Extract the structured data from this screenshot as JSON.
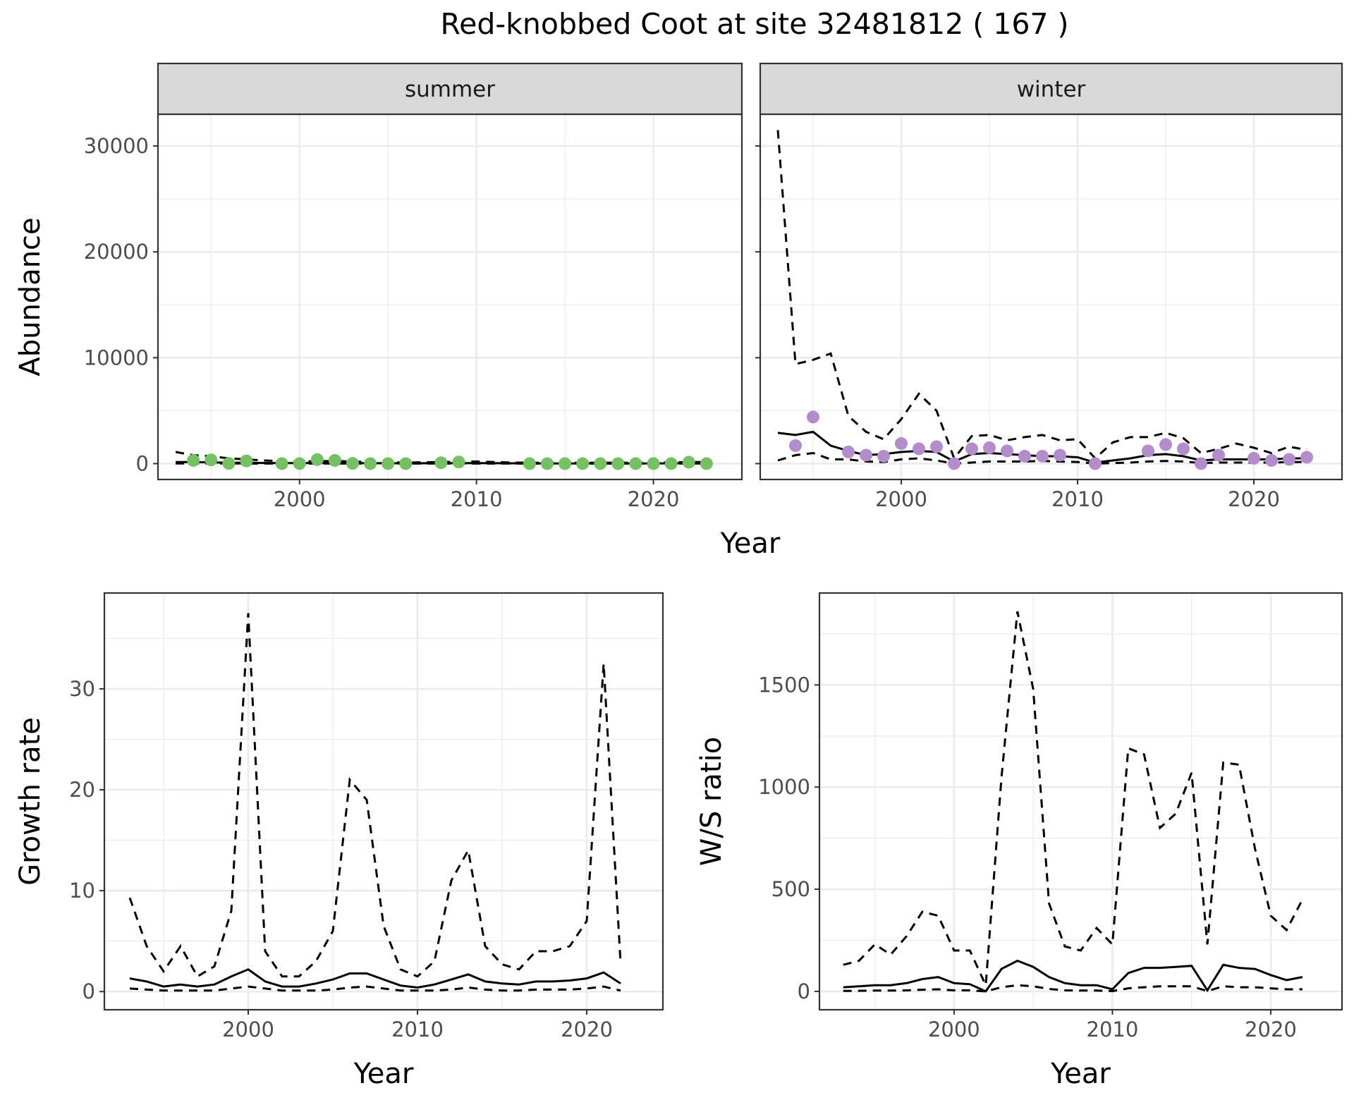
{
  "title": "Red-knobbed Coot at site 32481812 ( 167 )",
  "colors": {
    "summer_points": "#74c162",
    "winter_points": "#b38ccb",
    "strip_bg": "#d9d9d9",
    "grid": "#ebebeb",
    "lines": "#000000"
  },
  "chart_data": [
    {
      "type": "line",
      "panel": "abundance",
      "ylabel": "Abundance",
      "xlabel": "Year",
      "xlim": [
        1992,
        2025
      ],
      "ylim": [
        -1500,
        33000
      ],
      "xticks": [
        2000,
        2010,
        2020
      ],
      "yticks": [
        0,
        10000,
        20000,
        30000
      ],
      "ytick_labels": [
        "0",
        "10000",
        "20000",
        "30000"
      ],
      "facets": [
        {
          "strip": "summer",
          "point_color": "#74c162",
          "points": {
            "x": [
              1994,
              1995,
              1996,
              1997,
              1999,
              2000,
              2001,
              2002,
              2003,
              2004,
              2005,
              2006,
              2008,
              2009,
              2013,
              2014,
              2015,
              2016,
              2017,
              2018,
              2019,
              2020,
              2021,
              2022,
              2023
            ],
            "y": [
              300,
              350,
              20,
              250,
              0,
              0,
              380,
              300,
              20,
              0,
              0,
              0,
              80,
              150,
              0,
              0,
              0,
              0,
              0,
              0,
              0,
              0,
              0,
              130,
              0
            ]
          },
          "fit": {
            "x": [
              1993,
              1994,
              1995,
              1996,
              1997,
              1998,
              2000,
              2002,
              2004,
              2006,
              2008,
              2010,
              2012,
              2014,
              2016,
              2018,
              2020,
              2022,
              2023
            ],
            "mean": [
              150,
              140,
              120,
              90,
              80,
              60,
              50,
              60,
              40,
              30,
              40,
              50,
              30,
              20,
              20,
              20,
              20,
              40,
              40
            ],
            "lower": [
              20,
              20,
              15,
              10,
              10,
              5,
              5,
              5,
              5,
              5,
              5,
              5,
              5,
              5,
              5,
              5,
              5,
              5,
              5
            ],
            "upper": [
              1100,
              800,
              700,
              500,
              400,
              300,
              200,
              250,
              150,
              100,
              150,
              200,
              100,
              80,
              80,
              80,
              80,
              150,
              150
            ]
          }
        },
        {
          "strip": "winter",
          "point_color": "#b38ccb",
          "points": {
            "x": [
              1994,
              1995,
              1997,
              1998,
              1999,
              2000,
              2001,
              2002,
              2003,
              2004,
              2005,
              2006,
              2007,
              2008,
              2009,
              2011,
              2014,
              2015,
              2016,
              2017,
              2018,
              2020,
              2021,
              2022,
              2023
            ],
            "y": [
              1700,
              4400,
              1100,
              800,
              700,
              1900,
              1400,
              1600,
              0,
              1400,
              1500,
              1200,
              700,
              700,
              800,
              0,
              1200,
              1800,
              1400,
              0,
              800,
              500,
              300,
              400,
              600
            ]
          },
          "fit": {
            "x": [
              1993,
              1994,
              1995,
              1996,
              1997,
              1998,
              1999,
              2000,
              2001,
              2002,
              2003,
              2004,
              2005,
              2006,
              2007,
              2008,
              2009,
              2010,
              2011,
              2012,
              2013,
              2014,
              2015,
              2016,
              2017,
              2018,
              2019,
              2020,
              2021,
              2022,
              2023
            ],
            "mean": [
              2900,
              2700,
              3000,
              1700,
              1200,
              800,
              900,
              1100,
              1200,
              1100,
              200,
              900,
              1000,
              900,
              800,
              700,
              700,
              600,
              100,
              300,
              500,
              800,
              900,
              700,
              300,
              400,
              400,
              400,
              400,
              500,
              500
            ],
            "lower": [
              300,
              800,
              1000,
              400,
              400,
              200,
              150,
              400,
              500,
              300,
              0,
              100,
              200,
              200,
              200,
              250,
              200,
              150,
              0,
              50,
              100,
              200,
              250,
              200,
              50,
              100,
              100,
              100,
              100,
              150,
              150
            ],
            "upper": [
              31500,
              9400,
              9800,
              10400,
              4500,
              3000,
              2300,
              4200,
              6600,
              5000,
              500,
              2600,
              2700,
              2200,
              2500,
              2700,
              2200,
              2300,
              500,
              2000,
              2500,
              2500,
              2900,
              2400,
              1000,
              1400,
              1900,
              1500,
              1000,
              1600,
              1300
            ]
          }
        }
      ]
    },
    {
      "type": "line",
      "panel": "growth",
      "ylabel": "Growth rate",
      "xlabel": "Year",
      "xlim": [
        1991.5,
        2024.5
      ],
      "ylim": [
        -1.8,
        39.5
      ],
      "xticks": [
        2000,
        2010,
        2020
      ],
      "yticks": [
        0,
        10,
        20,
        30
      ],
      "x": [
        1993,
        1994,
        1995,
        1996,
        1997,
        1998,
        1999,
        2000,
        2001,
        2002,
        2003,
        2004,
        2005,
        2006,
        2007,
        2008,
        2009,
        2010,
        2011,
        2012,
        2013,
        2014,
        2015,
        2016,
        2017,
        2018,
        2019,
        2020,
        2021,
        2022
      ],
      "series": [
        {
          "role": "mean",
          "values": [
            1.3,
            1.0,
            0.5,
            0.7,
            0.5,
            0.7,
            1.5,
            2.2,
            1.0,
            0.5,
            0.5,
            0.8,
            1.2,
            1.8,
            1.8,
            1.2,
            0.6,
            0.4,
            0.7,
            1.2,
            1.7,
            1.0,
            0.8,
            0.7,
            1.0,
            1.0,
            1.1,
            1.3,
            1.9,
            0.8
          ]
        },
        {
          "role": "lower",
          "values": [
            0.3,
            0.2,
            0.1,
            0.1,
            0.1,
            0.1,
            0.3,
            0.5,
            0.3,
            0.1,
            0.1,
            0.1,
            0.2,
            0.4,
            0.5,
            0.3,
            0.1,
            0.1,
            0.1,
            0.2,
            0.4,
            0.2,
            0.1,
            0.1,
            0.2,
            0.2,
            0.2,
            0.3,
            0.5,
            0.1
          ]
        },
        {
          "role": "upper",
          "values": [
            9.3,
            4.5,
            2.0,
            4.5,
            1.5,
            2.5,
            8.0,
            37.5,
            4.0,
            1.5,
            1.5,
            3.0,
            6.0,
            21.0,
            19.0,
            6.5,
            2.2,
            1.5,
            3.0,
            11.0,
            14.0,
            4.5,
            2.7,
            2.2,
            4.0,
            4.0,
            4.5,
            7.0,
            32.5,
            2.8
          ]
        }
      ]
    },
    {
      "type": "line",
      "panel": "ratio",
      "ylabel": "W/S ratio",
      "xlabel": "Year",
      "xlim": [
        1991.5,
        2024.5
      ],
      "ylim": [
        -90,
        1950
      ],
      "xticks": [
        2000,
        2010,
        2020
      ],
      "yticks": [
        0,
        500,
        1000,
        1500
      ],
      "x": [
        1993,
        1994,
        1995,
        1996,
        1997,
        1998,
        1999,
        2000,
        2001,
        2002,
        2003,
        2004,
        2005,
        2006,
        2007,
        2008,
        2009,
        2010,
        2011,
        2012,
        2013,
        2014,
        2015,
        2016,
        2017,
        2018,
        2019,
        2020,
        2021,
        2022
      ],
      "series": [
        {
          "role": "mean",
          "values": [
            20,
            25,
            30,
            30,
            40,
            60,
            70,
            40,
            35,
            0,
            110,
            150,
            120,
            70,
            40,
            30,
            30,
            10,
            90,
            115,
            115,
            120,
            125,
            5,
            130,
            115,
            110,
            80,
            55,
            70
          ]
        },
        {
          "role": "lower",
          "values": [
            2,
            3,
            4,
            4,
            5,
            8,
            10,
            5,
            5,
            0,
            20,
            30,
            25,
            12,
            5,
            4,
            4,
            1,
            15,
            20,
            25,
            25,
            25,
            1,
            25,
            20,
            20,
            15,
            10,
            10
          ]
        },
        {
          "role": "upper",
          "values": [
            130,
            150,
            230,
            180,
            270,
            390,
            370,
            200,
            200,
            30,
            1050,
            1860,
            1480,
            430,
            220,
            200,
            310,
            230,
            1190,
            1160,
            800,
            870,
            1070,
            230,
            1120,
            1110,
            700,
            370,
            300,
            450
          ]
        }
      ]
    }
  ]
}
